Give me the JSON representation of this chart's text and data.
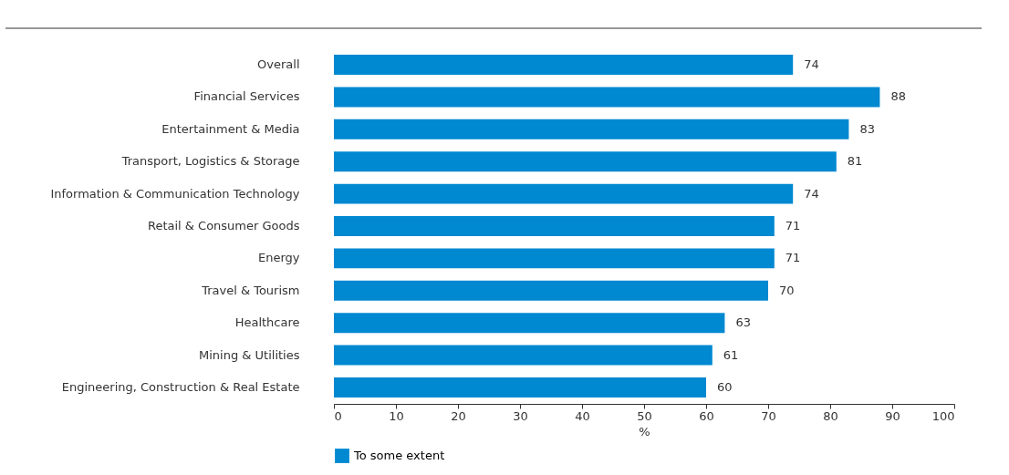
{
  "chart_data": {
    "type": "bar",
    "orientation": "horizontal",
    "xlabel": "%",
    "categories": [
      "Overall",
      "Financial Services",
      "Entertainment & Media",
      "Transport, Logistics & Storage",
      "Information & Communication Technology",
      "Retail & Consumer Goods",
      "Energy",
      "Travel & Tourism",
      "Healthcare",
      "Mining & Utilities",
      "Engineering, Construction & Real Estate"
    ],
    "series": [
      {
        "name": "To some extent",
        "color": "#0088d1",
        "values": [
          74,
          88,
          83,
          81,
          74,
          71,
          71,
          70,
          63,
          61,
          60
        ]
      }
    ],
    "xlim": [
      0,
      100
    ],
    "xticks": [
      0,
      10,
      20,
      30,
      40,
      50,
      60,
      70,
      80,
      90,
      100
    ],
    "data_labels": true,
    "legend": "bottom left",
    "grid": false
  }
}
